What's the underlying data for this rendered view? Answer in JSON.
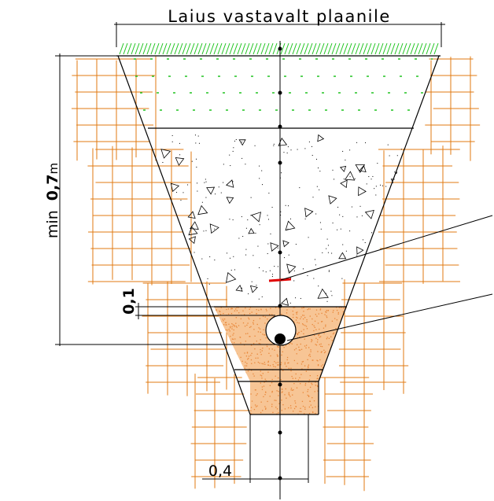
{
  "labels": {
    "width_label": "Laius vastavalt plaanile",
    "depth_prefix": "min",
    "depth_value": "0,7",
    "depth_unit": "m",
    "layer_thickness": "0,1",
    "bottom_width": "0,4"
  },
  "colors": {
    "line": "#000000",
    "soil_hatch": "#e07a10",
    "grass": "#22c422",
    "sand": "#f5a65a",
    "warning_tape": "#e00000"
  }
}
